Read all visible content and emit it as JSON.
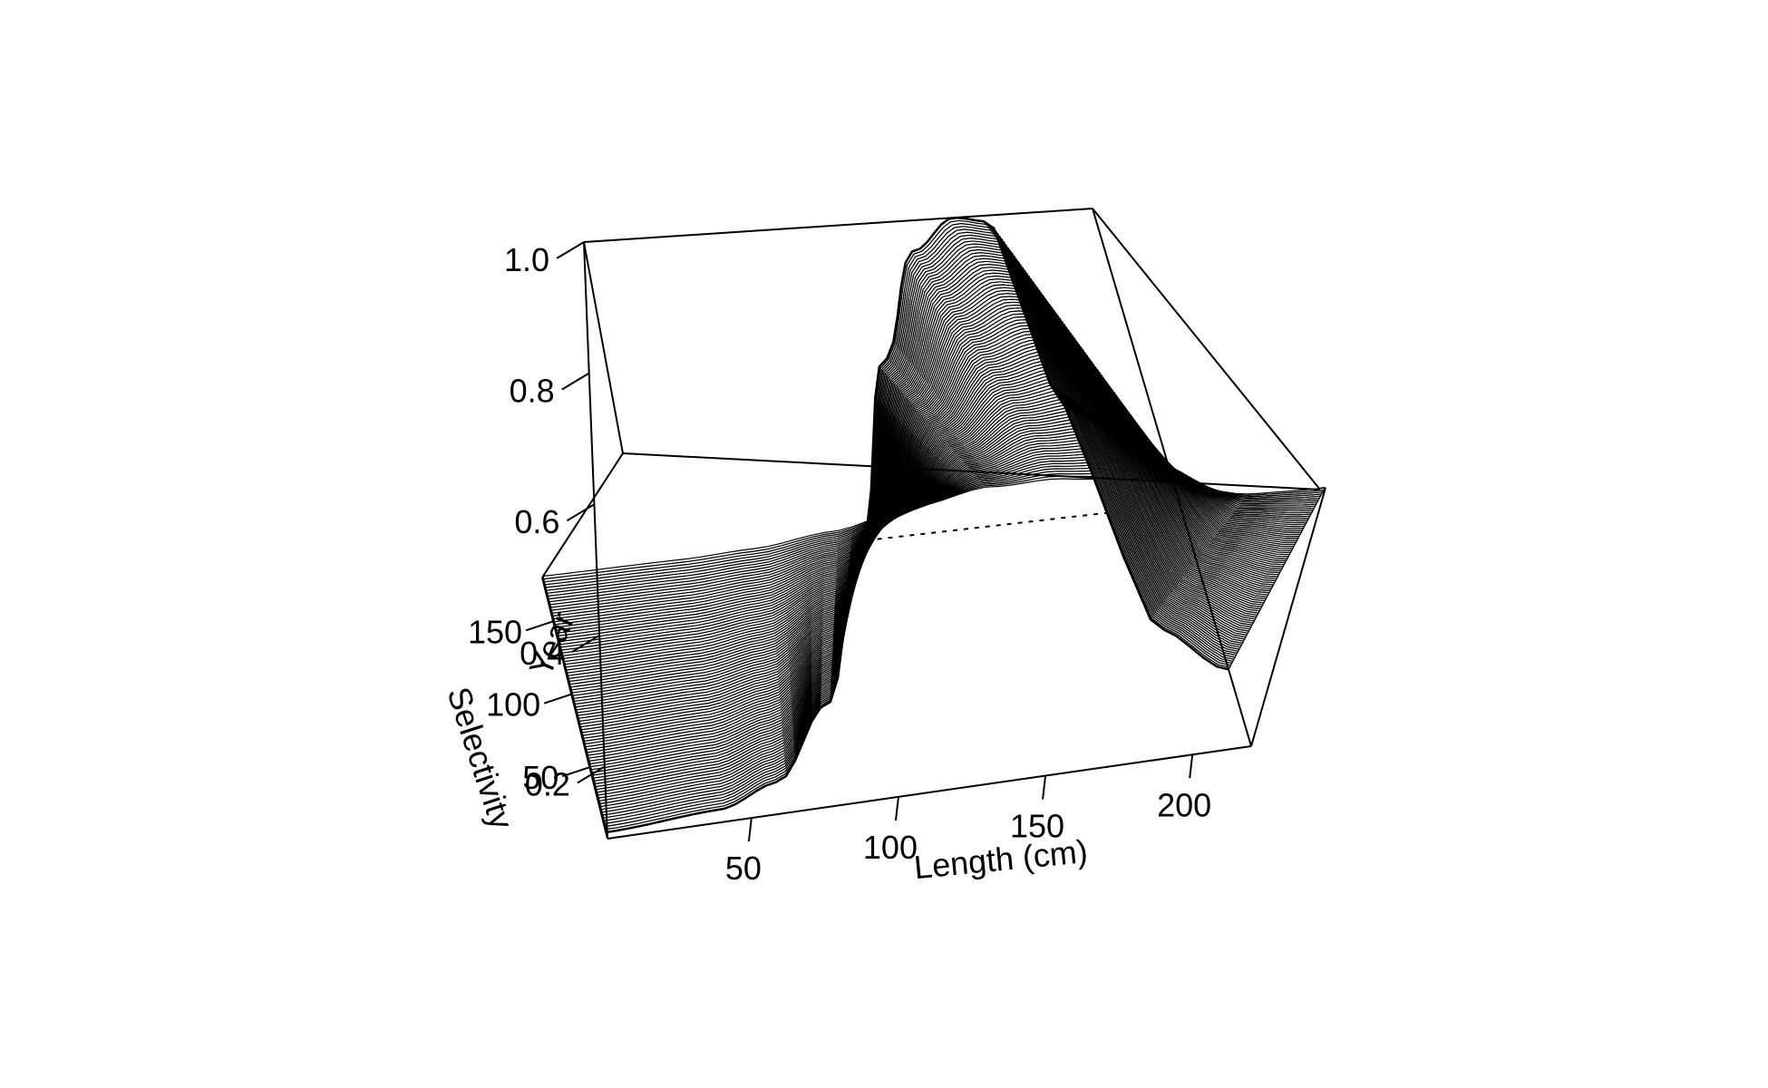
{
  "chart_data": {
    "type": "surface",
    "title": "",
    "xlabel": "Length (cm)",
    "ylabel": "Year",
    "zlabel": "Selectivity",
    "xlim": [
      1,
      220
    ],
    "ylim": [
      1,
      180
    ],
    "zlim": [
      0.09,
      1.0
    ],
    "x_ticks": [
      "50",
      "100",
      "150",
      "200"
    ],
    "y_ticks": [
      "50",
      "100",
      "150"
    ],
    "z_ticks": [
      "0.2",
      "0.4",
      "0.6",
      "0.8",
      "1.0"
    ],
    "surface_description": "Double-logistic (dome-shaped) selectivity over length; ascending limb around 70-115 cm, peak near 160-180 cm, descending limb at larger lengths; curve constant across years",
    "selectivity_at_length": {
      "length": [
        1,
        40,
        60,
        80,
        100,
        120,
        140,
        160,
        175,
        185,
        200,
        220
      ],
      "selectivity": [
        0.1,
        0.11,
        0.14,
        0.25,
        0.5,
        0.78,
        0.95,
        1.0,
        0.99,
        0.7,
        0.3,
        0.22
      ]
    }
  }
}
